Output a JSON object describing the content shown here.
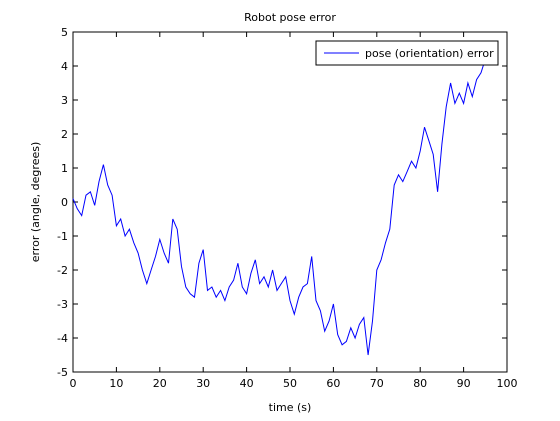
{
  "chart_data": {
    "type": "line",
    "title": "Robot pose error",
    "xlabel": "time (s)",
    "ylabel": "error (angle, degrees)",
    "xlim": [
      0,
      100
    ],
    "ylim": [
      -5,
      5
    ],
    "xticks": [
      0,
      10,
      20,
      30,
      40,
      50,
      60,
      70,
      80,
      90,
      100
    ],
    "yticks": [
      -5,
      -4,
      -3,
      -2,
      -1,
      0,
      1,
      2,
      3,
      4,
      5
    ],
    "xtick_labels": [
      "0",
      "10",
      "20",
      "30",
      "40",
      "50",
      "60",
      "70",
      "80",
      "90",
      "100"
    ],
    "ytick_labels": [
      "-5",
      "-4",
      "-3",
      "-2",
      "-1",
      "0",
      "1",
      "2",
      "3",
      "4",
      "5"
    ],
    "grid": false,
    "legend_position": "top-right",
    "series": [
      {
        "name": "pose (orientation) error",
        "color": "#0000ff",
        "x": [
          0,
          1,
          2,
          3,
          4,
          5,
          6,
          7,
          8,
          9,
          10,
          11,
          12,
          13,
          14,
          15,
          16,
          17,
          18,
          19,
          20,
          21,
          22,
          23,
          24,
          25,
          26,
          27,
          28,
          29,
          30,
          31,
          32,
          33,
          34,
          35,
          36,
          37,
          38,
          39,
          40,
          41,
          42,
          43,
          44,
          45,
          46,
          47,
          48,
          49,
          50,
          51,
          52,
          53,
          54,
          55,
          56,
          57,
          58,
          59,
          60,
          61,
          62,
          63,
          64,
          65,
          66,
          67,
          68,
          69,
          70,
          71,
          72,
          73,
          74,
          75,
          76,
          77,
          78,
          79,
          80,
          81,
          82,
          83,
          84,
          85,
          86,
          87,
          88,
          89,
          90,
          91,
          92,
          93,
          94,
          95
        ],
        "y": [
          0.1,
          -0.2,
          -0.4,
          0.2,
          0.3,
          -0.1,
          0.6,
          1.1,
          0.5,
          0.2,
          -0.7,
          -0.5,
          -1.0,
          -0.8,
          -1.2,
          -1.5,
          -2.0,
          -2.4,
          -2.0,
          -1.6,
          -1.1,
          -1.5,
          -1.8,
          -0.5,
          -0.8,
          -1.9,
          -2.5,
          -2.7,
          -2.8,
          -1.8,
          -1.4,
          -2.6,
          -2.5,
          -2.8,
          -2.6,
          -2.9,
          -2.5,
          -2.3,
          -1.8,
          -2.5,
          -2.7,
          -2.1,
          -1.7,
          -2.4,
          -2.2,
          -2.5,
          -2.0,
          -2.6,
          -2.4,
          -2.2,
          -2.9,
          -3.3,
          -2.8,
          -2.5,
          -2.4,
          -1.6,
          -2.9,
          -3.2,
          -3.8,
          -3.5,
          -3.0,
          -3.9,
          -4.2,
          -4.1,
          -3.7,
          -4.0,
          -3.6,
          -3.4,
          -4.5,
          -3.5,
          -2.0,
          -1.7,
          -1.2,
          -0.8,
          0.5,
          0.8,
          0.6,
          0.9,
          1.2,
          1.0,
          1.5,
          2.2,
          1.8,
          1.4,
          0.3,
          1.7,
          2.8,
          3.5,
          2.9,
          3.2,
          2.9,
          3.5,
          3.1,
          3.6,
          3.8,
          4.2
        ]
      }
    ]
  }
}
